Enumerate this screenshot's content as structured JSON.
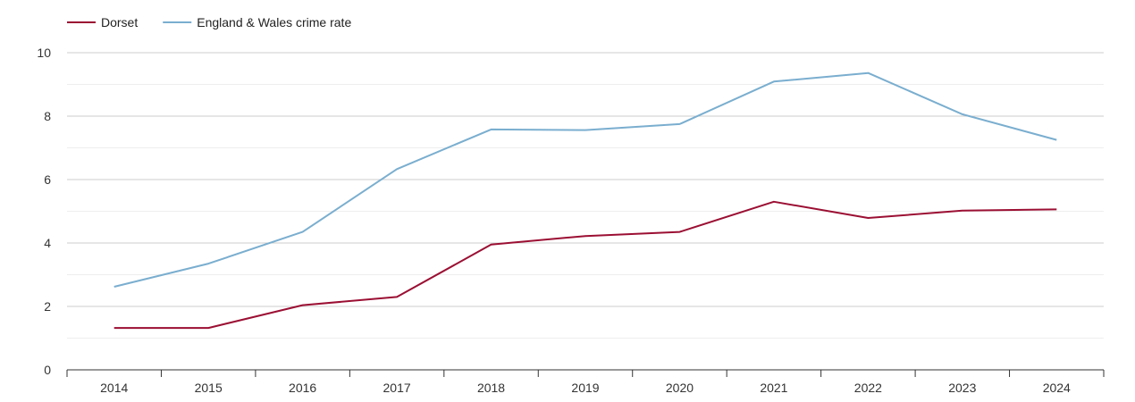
{
  "chart_data": {
    "type": "line",
    "title": "",
    "xlabel": "",
    "ylabel": "",
    "x": [
      2014,
      2015,
      2016,
      2017,
      2018,
      2019,
      2020,
      2021,
      2022,
      2023,
      2024
    ],
    "x_tick_labels": [
      "2014",
      "2015",
      "2016",
      "2017",
      "2018",
      "2019",
      "2020",
      "2021",
      "2022",
      "2023",
      "2024"
    ],
    "ylim": [
      0,
      10
    ],
    "y_ticks": [
      0,
      2,
      4,
      6,
      8,
      10
    ],
    "y_tick_labels": [
      "0",
      "2",
      "4",
      "6",
      "8",
      "10"
    ],
    "grid": true,
    "legend_position": "top-left",
    "series": [
      {
        "name": "Dorset",
        "color": "#9b0f33",
        "values": [
          1.32,
          1.32,
          2.04,
          2.3,
          3.95,
          4.22,
          4.35,
          5.3,
          4.79,
          5.02,
          5.06
        ]
      },
      {
        "name": "England & Wales crime rate",
        "color": "#7aaecf",
        "values": [
          2.62,
          3.35,
          4.35,
          6.33,
          7.58,
          7.56,
          7.75,
          9.09,
          9.36,
          8.06,
          7.25
        ]
      }
    ]
  }
}
